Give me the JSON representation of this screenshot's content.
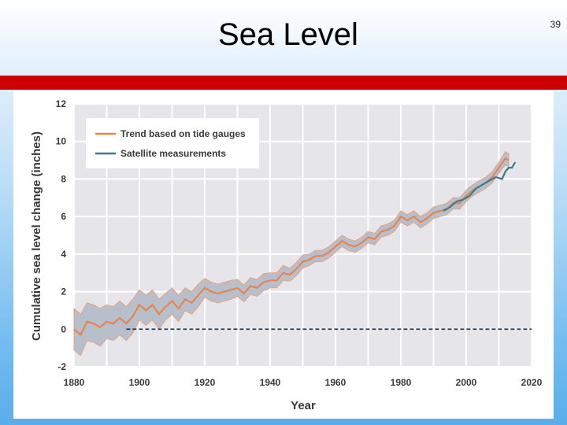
{
  "slide": {
    "title": "Sea Level",
    "page_number": "39"
  },
  "colors": {
    "tide": "#e8844a",
    "band": "#b8bfcc",
    "band_edge": "#e8a07a",
    "satellite": "#3d7c88",
    "zero_line": "#2b3a5a",
    "grid": "#ffffff",
    "plot_bg": "#e6e6ea",
    "red_bar": "#cc0000"
  },
  "chart_data": {
    "type": "line",
    "title": "",
    "xlabel": "Year",
    "ylabel": "Cumulative sea level change (inches)",
    "xlim": [
      1880,
      2020
    ],
    "ylim": [
      -2,
      12
    ],
    "x_ticks": [
      "1880",
      "1900",
      "1920",
      "1940",
      "1960",
      "1980",
      "2000",
      "2020"
    ],
    "y_ticks": [
      "-2",
      "0",
      "2",
      "4",
      "6",
      "8",
      "10",
      "12"
    ],
    "grid": true,
    "legend_position": "top-left",
    "reference_line": {
      "y": 0,
      "x_start": 1896,
      "x_end": 2020,
      "style": "dashed"
    },
    "series": [
      {
        "name": "Trend based on tide gauges",
        "x": [
          1880,
          1882,
          1884,
          1886,
          1888,
          1890,
          1892,
          1894,
          1896,
          1898,
          1900,
          1902,
          1904,
          1906,
          1908,
          1910,
          1912,
          1914,
          1916,
          1918,
          1920,
          1922,
          1924,
          1926,
          1928,
          1930,
          1932,
          1934,
          1936,
          1938,
          1940,
          1942,
          1944,
          1946,
          1948,
          1950,
          1952,
          1954,
          1956,
          1958,
          1960,
          1962,
          1964,
          1966,
          1968,
          1970,
          1972,
          1974,
          1976,
          1978,
          1980,
          1982,
          1984,
          1986,
          1988,
          1990,
          1992,
          1994,
          1996,
          1998,
          2000,
          2002,
          2004,
          2006,
          2008,
          2010,
          2012,
          2013
        ],
        "values": [
          0.0,
          -0.3,
          0.4,
          0.3,
          0.1,
          0.4,
          0.3,
          0.6,
          0.3,
          0.7,
          1.3,
          1.0,
          1.3,
          0.8,
          1.2,
          1.5,
          1.1,
          1.6,
          1.4,
          1.8,
          2.2,
          2.0,
          1.9,
          2.0,
          2.1,
          2.2,
          1.9,
          2.3,
          2.2,
          2.5,
          2.6,
          2.6,
          3.0,
          2.9,
          3.2,
          3.6,
          3.7,
          3.9,
          3.9,
          4.1,
          4.4,
          4.7,
          4.5,
          4.4,
          4.6,
          4.9,
          4.8,
          5.2,
          5.3,
          5.5,
          6.0,
          5.8,
          6.0,
          5.7,
          5.9,
          6.2,
          6.3,
          6.4,
          6.7,
          6.7,
          7.1,
          7.4,
          7.6,
          7.8,
          8.1,
          8.6,
          9.1,
          9.0
        ],
        "band": [
          1.1,
          1.1,
          1.0,
          1.0,
          1.0,
          0.9,
          0.9,
          0.9,
          0.9,
          0.9,
          0.8,
          0.8,
          0.8,
          0.8,
          0.7,
          0.7,
          0.7,
          0.6,
          0.6,
          0.6,
          0.5,
          0.5,
          0.5,
          0.5,
          0.5,
          0.45,
          0.45,
          0.45,
          0.45,
          0.45,
          0.4,
          0.4,
          0.4,
          0.35,
          0.35,
          0.35,
          0.3,
          0.3,
          0.3,
          0.3,
          0.3,
          0.3,
          0.3,
          0.3,
          0.3,
          0.3,
          0.3,
          0.3,
          0.3,
          0.3,
          0.3,
          0.3,
          0.3,
          0.3,
          0.3,
          0.3,
          0.3,
          0.3,
          0.3,
          0.3,
          0.3,
          0.3,
          0.3,
          0.3,
          0.3,
          0.3,
          0.35,
          0.35
        ]
      },
      {
        "name": "Satellite measurements",
        "x": [
          1993,
          1995,
          1997,
          1999,
          2001,
          2003,
          2005,
          2007,
          2009,
          2011,
          2012,
          2013,
          2014,
          2015
        ],
        "values": [
          6.3,
          6.5,
          6.8,
          6.9,
          7.1,
          7.5,
          7.7,
          7.9,
          8.1,
          8.0,
          8.4,
          8.6,
          8.6,
          8.9
        ]
      }
    ]
  }
}
